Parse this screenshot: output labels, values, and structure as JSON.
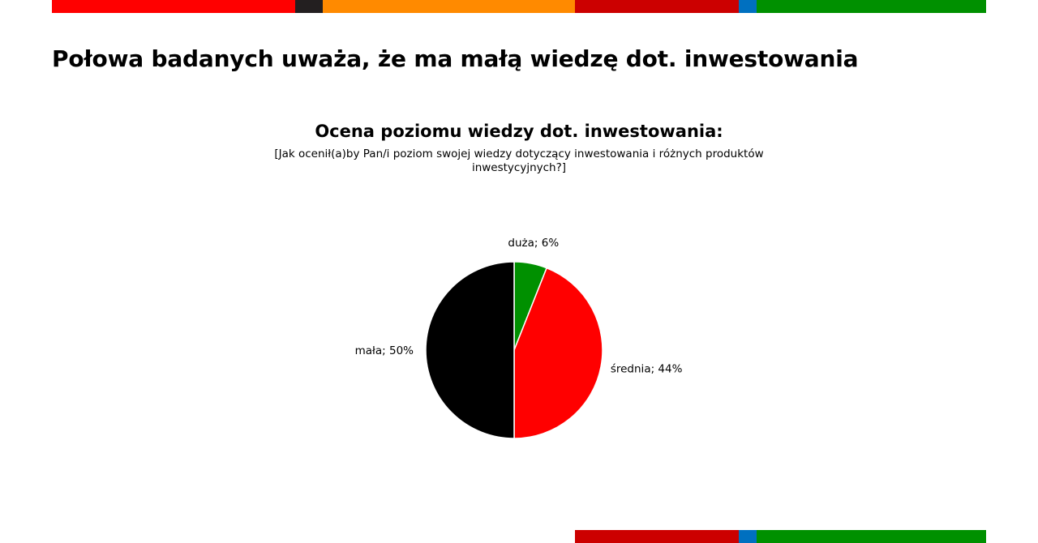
{
  "header": {
    "headline": "Połowa badanych uważa, że ma małą wiedzę dot. inwestowania"
  },
  "decor": {
    "top_stripe": [
      {
        "color": "#ff0000",
        "share": 300
      },
      {
        "color": "#231f20",
        "share": 34
      },
      {
        "color": "#ff8a00",
        "share": 311
      },
      {
        "color": "#cc0000",
        "share": 202
      },
      {
        "color": "#0070c0",
        "share": 22
      },
      {
        "color": "#009000",
        "share": 283
      }
    ],
    "bottom_stripe": [
      {
        "color": "#cc0000",
        "share": 202
      },
      {
        "color": "#0070c0",
        "share": 22
      },
      {
        "color": "#009000",
        "share": 283
      }
    ]
  },
  "chart_data": {
    "type": "pie",
    "title": "Ocena poziomu wiedzy dot. inwestowania:",
    "subtitle": "[Jak ocenił(a)by Pan/i poziom swojej wiedzy dotyczący inwestowania i różnych produktów inwestycyjnych?]",
    "unit": "%",
    "slices": [
      {
        "label": "duża; 6%",
        "name": "duża",
        "value": 6,
        "color": "#009000"
      },
      {
        "label": "średnia; 44%",
        "name": "średnia",
        "value": 44,
        "color": "#ff0000"
      },
      {
        "label": "mała; 50%",
        "name": "mała",
        "value": 50,
        "color": "#000000"
      }
    ]
  }
}
